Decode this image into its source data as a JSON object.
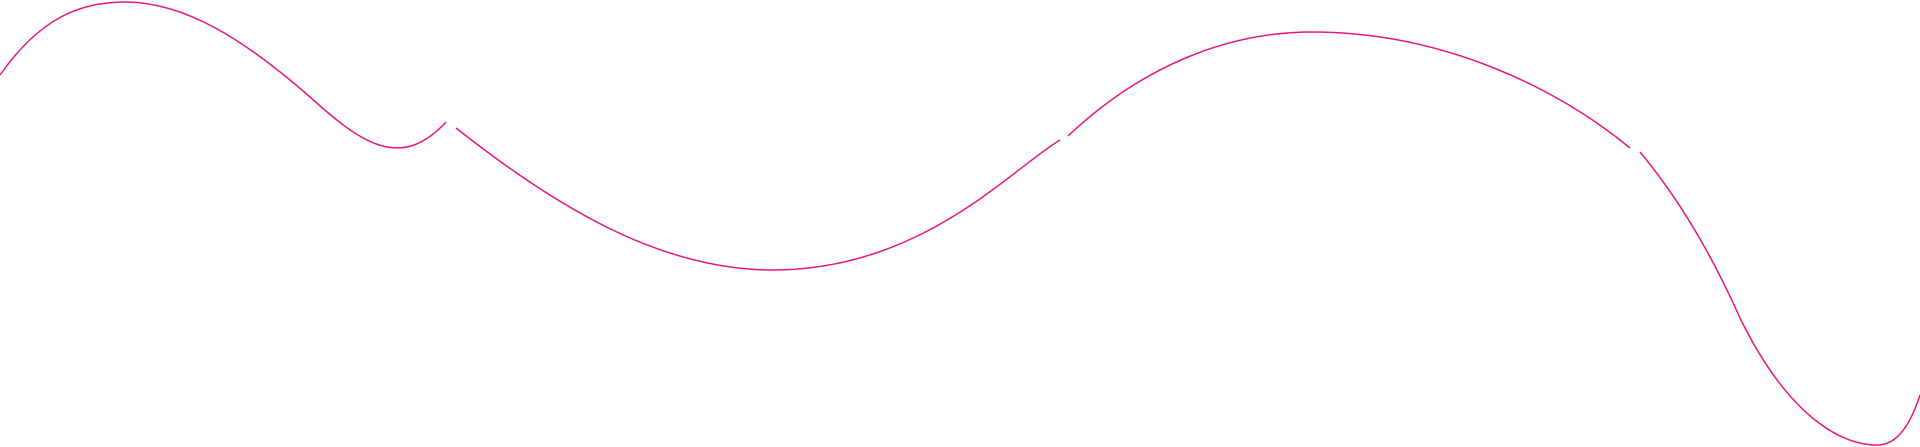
{
  "decoration": {
    "stroke_color": "#e8177a",
    "background_color": "#ffffff"
  }
}
